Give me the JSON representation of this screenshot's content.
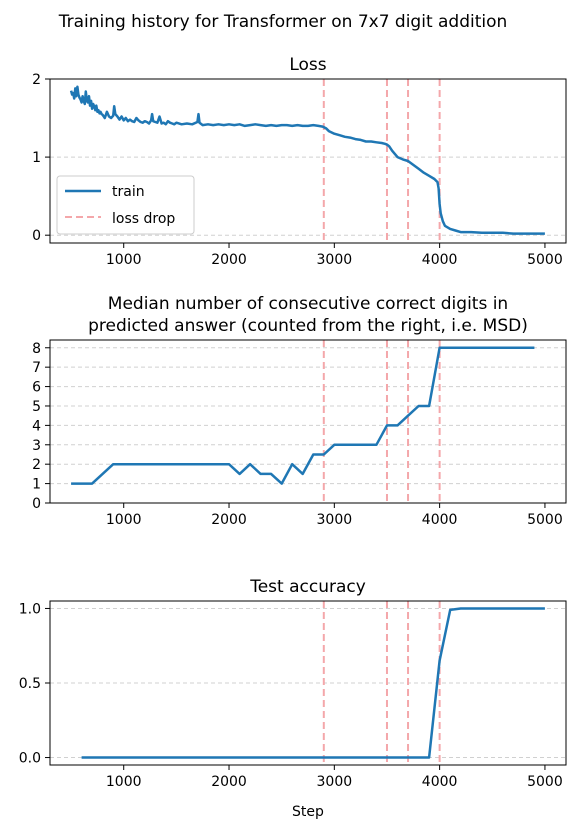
{
  "figure_title": "Training history for Transformer on 7x7 digit addition",
  "colors": {
    "series": "#1f77b4",
    "loss_drop": "#f4a7aa",
    "grid": "#d0d0d0"
  },
  "loss_drops": [
    2900,
    3500,
    3700,
    4000
  ],
  "chart_data": [
    {
      "type": "line",
      "title": "Loss",
      "xlabel": "",
      "ylabel": "",
      "xlim": [
        300,
        5200
      ],
      "ylim": [
        -0.1,
        2.0
      ],
      "xticks": [
        1000,
        2000,
        3000,
        4000,
        5000
      ],
      "yticks": [
        0,
        1,
        2
      ],
      "ytick_labels": [
        "0",
        "1",
        "2"
      ],
      "grid": "y",
      "legend": {
        "placement": "lower-left",
        "entries": [
          "train",
          "loss drop"
        ]
      },
      "series": [
        {
          "name": "train",
          "x": [
            500,
            510,
            520,
            530,
            540,
            550,
            560,
            570,
            580,
            590,
            600,
            610,
            620,
            630,
            640,
            650,
            660,
            670,
            680,
            690,
            700,
            710,
            720,
            730,
            740,
            750,
            760,
            770,
            780,
            790,
            800,
            820,
            840,
            860,
            880,
            900,
            910,
            920,
            940,
            960,
            980,
            1000,
            1020,
            1040,
            1060,
            1080,
            1100,
            1120,
            1140,
            1160,
            1180,
            1200,
            1220,
            1240,
            1260,
            1270,
            1280,
            1300,
            1320,
            1340,
            1360,
            1380,
            1400,
            1420,
            1440,
            1460,
            1480,
            1500,
            1550,
            1600,
            1650,
            1700,
            1710,
            1720,
            1750,
            1800,
            1850,
            1900,
            1950,
            2000,
            2050,
            2100,
            2150,
            2200,
            2250,
            2300,
            2350,
            2400,
            2450,
            2500,
            2550,
            2600,
            2650,
            2700,
            2750,
            2800,
            2850,
            2890,
            2920,
            2950,
            3000,
            3050,
            3100,
            3150,
            3200,
            3250,
            3300,
            3350,
            3400,
            3450,
            3480,
            3500,
            3520,
            3550,
            3600,
            3650,
            3700,
            3750,
            3800,
            3850,
            3900,
            3950,
            3980,
            3990,
            4000,
            4010,
            4030,
            4050,
            4100,
            4150,
            4200,
            4300,
            4400,
            4500,
            4600,
            4700,
            4800,
            4900,
            5000
          ],
          "y": [
            1.85,
            1.8,
            1.82,
            1.75,
            1.88,
            1.78,
            1.9,
            1.8,
            1.76,
            1.74,
            1.7,
            1.78,
            1.72,
            1.68,
            1.84,
            1.72,
            1.7,
            1.78,
            1.66,
            1.72,
            1.62,
            1.68,
            1.65,
            1.6,
            1.66,
            1.58,
            1.6,
            1.56,
            1.58,
            1.55,
            1.54,
            1.5,
            1.58,
            1.52,
            1.5,
            1.53,
            1.65,
            1.55,
            1.52,
            1.48,
            1.52,
            1.47,
            1.5,
            1.46,
            1.48,
            1.46,
            1.45,
            1.5,
            1.47,
            1.45,
            1.44,
            1.46,
            1.45,
            1.43,
            1.47,
            1.55,
            1.46,
            1.45,
            1.44,
            1.52,
            1.43,
            1.44,
            1.42,
            1.46,
            1.44,
            1.43,
            1.42,
            1.44,
            1.42,
            1.43,
            1.42,
            1.45,
            1.55,
            1.44,
            1.41,
            1.42,
            1.41,
            1.42,
            1.41,
            1.42,
            1.41,
            1.42,
            1.4,
            1.41,
            1.42,
            1.41,
            1.4,
            1.41,
            1.4,
            1.41,
            1.41,
            1.4,
            1.41,
            1.4,
            1.4,
            1.41,
            1.4,
            1.39,
            1.37,
            1.33,
            1.3,
            1.28,
            1.26,
            1.25,
            1.23,
            1.22,
            1.2,
            1.2,
            1.19,
            1.18,
            1.17,
            1.16,
            1.14,
            1.08,
            1.0,
            0.97,
            0.95,
            0.9,
            0.85,
            0.8,
            0.76,
            0.72,
            0.68,
            0.6,
            0.4,
            0.28,
            0.18,
            0.12,
            0.08,
            0.06,
            0.04,
            0.04,
            0.03,
            0.03,
            0.03,
            0.02,
            0.02,
            0.02,
            0.02
          ]
        }
      ]
    },
    {
      "type": "line",
      "title": "Median number of consecutive correct digits in predicted answer (counted from the right, i.e. MSD)",
      "title_lines": [
        "Median number of consecutive correct digits in",
        "predicted answer (counted from the right, i.e. MSD)"
      ],
      "xlabel": "",
      "ylabel": "",
      "xlim": [
        300,
        5200
      ],
      "ylim": [
        0,
        8.4
      ],
      "xticks": [
        1000,
        2000,
        3000,
        4000,
        5000
      ],
      "yticks": [
        0,
        1,
        2,
        3,
        4,
        5,
        6,
        7,
        8
      ],
      "ytick_labels": [
        "0",
        "1",
        "2",
        "3",
        "4",
        "5",
        "6",
        "7",
        "8"
      ],
      "grid": "y",
      "series": [
        {
          "x": [
            500,
            700,
            900,
            1000,
            1100,
            1200,
            1300,
            1400,
            1500,
            1600,
            1700,
            1800,
            1900,
            2000,
            2100,
            2200,
            2300,
            2400,
            2500,
            2600,
            2700,
            2800,
            2900,
            3000,
            3100,
            3200,
            3300,
            3400,
            3500,
            3600,
            3700,
            3800,
            3900,
            4000,
            4100,
            4200,
            4300,
            4400,
            4500,
            4600,
            4700,
            4800,
            4900
          ],
          "y": [
            1,
            1,
            2,
            2,
            2,
            2,
            2,
            2,
            2,
            2,
            2,
            2,
            2,
            2,
            1.5,
            2,
            1.5,
            1.5,
            1,
            2,
            1.5,
            2.5,
            2.5,
            3,
            3,
            3,
            3,
            3,
            4,
            4,
            4.5,
            5,
            5,
            8,
            8,
            8,
            8,
            8,
            8,
            8,
            8,
            8,
            8
          ]
        }
      ]
    },
    {
      "type": "line",
      "title": "Test accuracy",
      "xlabel": "Step",
      "ylabel": "",
      "xlim": [
        300,
        5200
      ],
      "ylim": [
        -0.05,
        1.05
      ],
      "xticks": [
        1000,
        2000,
        3000,
        4000,
        5000
      ],
      "yticks": [
        0,
        0.5,
        1
      ],
      "ytick_labels": [
        "0.0",
        "0.5",
        "1.0"
      ],
      "grid": "y",
      "series": [
        {
          "x": [
            600,
            1000,
            1500,
            2000,
            2500,
            3000,
            3500,
            3800,
            3900,
            4000,
            4100,
            4200,
            4300,
            4400,
            4500,
            4600,
            4700,
            4800,
            4900,
            5000
          ],
          "y": [
            0,
            0,
            0,
            0,
            0,
            0,
            0,
            0,
            0,
            0.65,
            0.99,
            1.0,
            1.0,
            1.0,
            1.0,
            1.0,
            1.0,
            1.0,
            1.0,
            1.0
          ]
        }
      ]
    }
  ]
}
